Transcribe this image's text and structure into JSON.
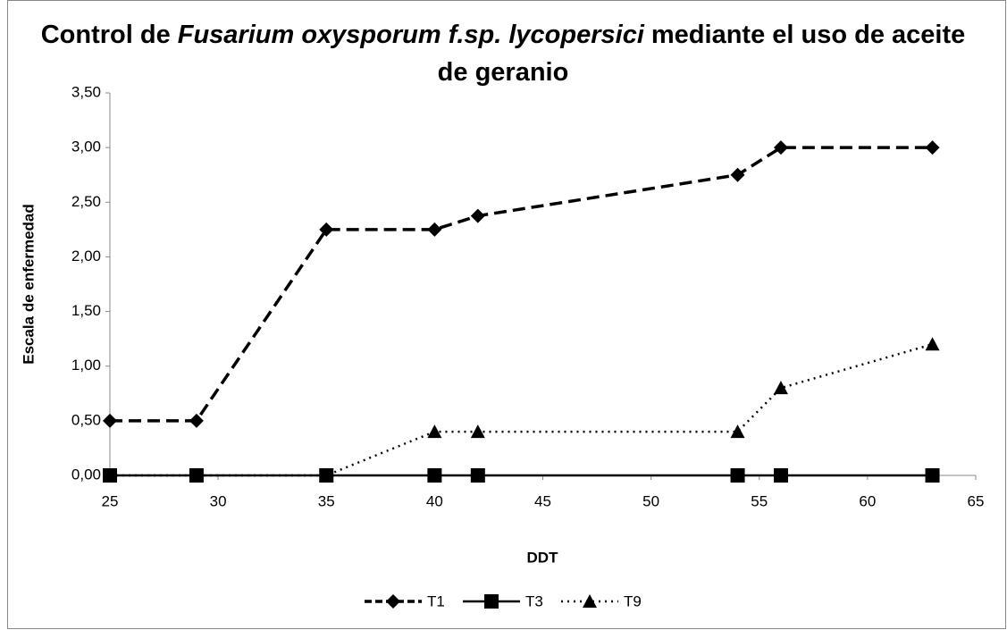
{
  "chart_data": {
    "type": "line",
    "title": [
      {
        "text": "Control de",
        "italic": false
      },
      {
        "text": "Fusarium oxysporum f.sp. lycopersici",
        "italic": true
      },
      {
        "text": "mediante el uso de aceite",
        "italic": false
      },
      {
        "text": "de geranio",
        "italic": false
      }
    ],
    "xlabel": "DDT",
    "ylabel": "Escala de enfermedad",
    "x": [
      25,
      29,
      35,
      40,
      42,
      54,
      56,
      63
    ],
    "series": [
      {
        "name": "T1",
        "color": "#000000",
        "linestyle": "dashed",
        "marker": "diamond",
        "values": [
          0.5,
          0.5,
          2.25,
          2.25,
          2.375,
          2.75,
          3,
          3
        ]
      },
      {
        "name": "T3",
        "color": "#000000",
        "linestyle": "solid",
        "marker": "square",
        "values": [
          0,
          0,
          0,
          0,
          0,
          0,
          0,
          0
        ]
      },
      {
        "name": "T9",
        "color": "#000000",
        "linestyle": "dotted",
        "marker": "triangle",
        "values": [
          0,
          0,
          0,
          0.4,
          0.4,
          0.4,
          0.8,
          1.2
        ]
      }
    ],
    "xlim": [
      25,
      65
    ],
    "xticks": [
      25,
      30,
      35,
      40,
      45,
      50,
      55,
      60,
      65
    ],
    "ylim": [
      0,
      3.5
    ],
    "yticks": [
      {
        "value": 0,
        "label": "0,00"
      },
      {
        "value": 0.5,
        "label": "0,50"
      },
      {
        "value": 1,
        "label": "1,00"
      },
      {
        "value": 1.5,
        "label": "1,50"
      },
      {
        "value": 2,
        "label": "2,00"
      },
      {
        "value": 2.5,
        "label": "2,50"
      },
      {
        "value": 3,
        "label": "3,00"
      },
      {
        "value": 3.5,
        "label": "3,50"
      }
    ],
    "grid": false,
    "legend": "bottom"
  }
}
